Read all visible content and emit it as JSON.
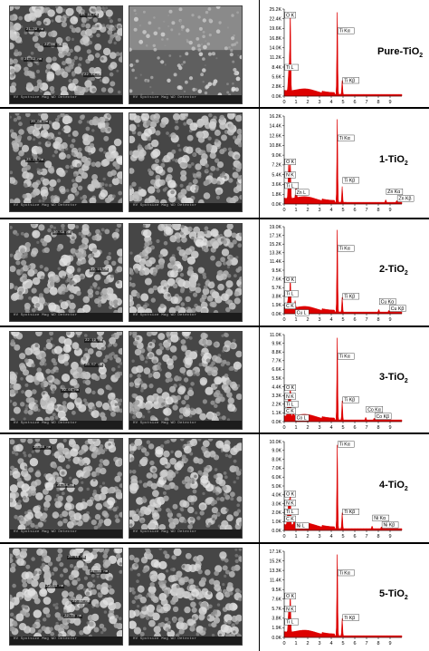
{
  "colors": {
    "spectrum": "#dd0000",
    "background": "#ffffff",
    "sem_gray": "#6d6d6d"
  },
  "panels": [
    {
      "name": "Pure-TiO",
      "subscript": "2",
      "yticks": [
        "25.2K",
        "22.4K",
        "19.6K",
        "16.8K",
        "14.0K",
        "11.2K",
        "8.4K",
        "5.6K",
        "2.8K",
        "0.0K"
      ],
      "sem_labels": [
        "23.11 nm",
        "21.39 nm",
        "22.00 nm",
        "21.62 nm",
        "22.49 nm"
      ],
      "peaks": [
        {
          "e": 0.39,
          "h": 0.22,
          "w": 0.07
        },
        {
          "e": 0.45,
          "h": 0.14,
          "w": 0.05
        },
        {
          "e": 0.52,
          "h": 0.9,
          "w": 0.05
        },
        {
          "e": 4.51,
          "h": 0.98,
          "w": 0.05
        },
        {
          "e": 4.93,
          "h": 0.16,
          "w": 0.05
        }
      ],
      "labels": [
        {
          "text": "O K",
          "e": 0.52,
          "h": 0.9
        },
        {
          "text": "Ti L",
          "e": 0.39,
          "h": 0.3
        },
        {
          "text": "Ti Kα",
          "e": 4.51,
          "h": 0.72
        },
        {
          "text": "Ti Kβ",
          "e": 4.93,
          "h": 0.15
        }
      ]
    },
    {
      "name": "1-TiO",
      "subscript": "2",
      "yticks": [
        "16.2K",
        "14.4K",
        "12.6K",
        "10.8K",
        "9.0K",
        "7.2K",
        "5.4K",
        "3.6K",
        "1.8K",
        "0.0K"
      ],
      "sem_labels": [
        "20.06 nm",
        "23.28 nm"
      ],
      "peaks": [
        {
          "e": 0.39,
          "h": 0.26,
          "w": 0.07
        },
        {
          "e": 0.39,
          "h": 0.2,
          "w": 0.06
        },
        {
          "e": 0.52,
          "h": 0.42,
          "w": 0.05
        },
        {
          "e": 1.01,
          "h": 0.16,
          "w": 0.06
        },
        {
          "e": 4.51,
          "h": 0.98,
          "w": 0.05
        },
        {
          "e": 4.93,
          "h": 0.18,
          "w": 0.05
        },
        {
          "e": 8.63,
          "h": 0.03,
          "w": 0.05
        },
        {
          "e": 9.57,
          "h": 0.02,
          "w": 0.05
        }
      ],
      "labels": [
        {
          "text": "O K",
          "e": 0.52,
          "h": 0.45
        },
        {
          "text": "N K",
          "e": 0.39,
          "h": 0.3
        },
        {
          "text": "Ti L",
          "e": 0.39,
          "h": 0.18
        },
        {
          "text": "Zn L",
          "e": 1.01,
          "h": 0.18
        },
        {
          "text": "Ti Kα",
          "e": 4.51,
          "h": 0.72
        },
        {
          "text": "Ti Kβ",
          "e": 4.93,
          "h": 0.24
        },
        {
          "text": "Zn Kα",
          "e": 8.63,
          "h": 0.04
        },
        {
          "text": "Zn Kβ",
          "e": 9.57,
          "h": 0.04
        }
      ]
    },
    {
      "name": "2-TiO",
      "subscript": "2",
      "yticks": [
        "19.0K",
        "17.1K",
        "15.2K",
        "13.3K",
        "11.4K",
        "9.5K",
        "7.6K",
        "5.7K",
        "3.8K",
        "1.9K",
        "0.0K"
      ],
      "sem_labels": [
        "20.58 nm",
        "22.15 nm"
      ],
      "peaks": [
        {
          "e": 0.27,
          "h": 0.06,
          "w": 0.05
        },
        {
          "e": 0.39,
          "h": 0.2,
          "w": 0.07
        },
        {
          "e": 0.52,
          "h": 0.36,
          "w": 0.05
        },
        {
          "e": 0.93,
          "h": 0.08,
          "w": 0.05
        },
        {
          "e": 4.51,
          "h": 0.98,
          "w": 0.05
        },
        {
          "e": 4.93,
          "h": 0.17,
          "w": 0.05
        },
        {
          "e": 8.04,
          "h": 0.03,
          "w": 0.05
        },
        {
          "e": 8.9,
          "h": 0.02,
          "w": 0.05
        }
      ],
      "labels": [
        {
          "text": "O K",
          "e": 0.52,
          "h": 0.36
        },
        {
          "text": "Ti L",
          "e": 0.39,
          "h": 0.2
        },
        {
          "text": "C K",
          "e": 0.27,
          "h": 0.06
        },
        {
          "text": "Cu L",
          "e": 0.93,
          "h": 0.06
        },
        {
          "text": "Ti Kα",
          "e": 4.51,
          "h": 0.72
        },
        {
          "text": "Ti Kβ",
          "e": 4.93,
          "h": 0.17
        },
        {
          "text": "Cu Kα",
          "e": 8.04,
          "h": 0.04
        },
        {
          "text": "Cu Kβ",
          "e": 8.9,
          "h": 0.04
        }
      ]
    },
    {
      "name": "3-TiO",
      "subscript": "2",
      "yticks": [
        "11.0K",
        "9.9K",
        "8.8K",
        "7.7K",
        "6.6K",
        "5.5K",
        "4.4K",
        "3.3K",
        "2.2K",
        "1.1K",
        "0.0K"
      ],
      "sem_labels": [
        "22.19 nm",
        "20.57 nm",
        "19.65 nm"
      ],
      "peaks": [
        {
          "e": 0.27,
          "h": 0.1,
          "w": 0.05
        },
        {
          "e": 0.39,
          "h": 0.26,
          "w": 0.07
        },
        {
          "e": 0.52,
          "h": 0.36,
          "w": 0.05
        },
        {
          "e": 0.78,
          "h": 0.08,
          "w": 0.05
        },
        {
          "e": 4.51,
          "h": 0.98,
          "w": 0.05
        },
        {
          "e": 4.93,
          "h": 0.22,
          "w": 0.05
        },
        {
          "e": 6.93,
          "h": 0.03,
          "w": 0.05
        },
        {
          "e": 7.65,
          "h": 0.02,
          "w": 0.05
        }
      ],
      "labels": [
        {
          "text": "O K",
          "e": 0.52,
          "h": 0.36
        },
        {
          "text": "N K",
          "e": 0.39,
          "h": 0.26
        },
        {
          "text": "Ti L",
          "e": 0.39,
          "h": 0.17
        },
        {
          "text": "C K",
          "e": 0.27,
          "h": 0.1
        },
        {
          "text": "Co L",
          "e": 0.78,
          "h": 0.1
        },
        {
          "text": "Ti Kα",
          "e": 4.51,
          "h": 0.72
        },
        {
          "text": "Ti Kβ",
          "e": 4.93,
          "h": 0.22
        },
        {
          "text": "Co Kα",
          "e": 6.93,
          "h": 0.04
        },
        {
          "text": "Co Kβ",
          "e": 7.65,
          "h": 0.04
        }
      ]
    },
    {
      "name": "4-TiO",
      "subscript": "2",
      "yticks": [
        "10.0K",
        "9.0K",
        "8.0K",
        "7.0K",
        "6.0K",
        "5.0K",
        "4.0K",
        "3.0K",
        "2.0K",
        "1.0K",
        "0.0K"
      ],
      "sem_labels": [
        "20.68 nm",
        "21.56 nm"
      ],
      "peaks": [
        {
          "e": 0.27,
          "h": 0.1,
          "w": 0.05
        },
        {
          "e": 0.39,
          "h": 0.3,
          "w": 0.07
        },
        {
          "e": 0.52,
          "h": 0.38,
          "w": 0.05
        },
        {
          "e": 0.85,
          "h": 0.08,
          "w": 0.05
        },
        {
          "e": 4.51,
          "h": 0.98,
          "w": 0.05
        },
        {
          "e": 4.93,
          "h": 0.18,
          "w": 0.05
        },
        {
          "e": 7.47,
          "h": 0.03,
          "w": 0.05
        },
        {
          "e": 8.26,
          "h": 0.02,
          "w": 0.05
        }
      ],
      "labels": [
        {
          "text": "O K",
          "e": 0.52,
          "h": 0.38
        },
        {
          "text": "N K",
          "e": 0.39,
          "h": 0.28
        },
        {
          "text": "Ti L",
          "e": 0.39,
          "h": 0.18
        },
        {
          "text": "C K",
          "e": 0.27,
          "h": 0.1
        },
        {
          "text": "Ni L",
          "e": 0.85,
          "h": 0.1
        },
        {
          "text": "Ti Kα",
          "e": 4.51,
          "h": 0.94
        },
        {
          "text": "Ti Kβ",
          "e": 4.93,
          "h": 0.18
        },
        {
          "text": "Ni Kα",
          "e": 7.47,
          "h": 0.04
        },
        {
          "text": "Ni Kβ",
          "e": 8.26,
          "h": 0.04
        }
      ]
    },
    {
      "name": "5-TiO",
      "subscript": "2",
      "yticks": [
        "17.1K",
        "15.2K",
        "13.3K",
        "11.4K",
        "9.5K",
        "7.6K",
        "5.7K",
        "3.8K",
        "1.9K",
        "0.0K"
      ],
      "sem_labels": [
        "20.18 nm",
        "21.31 nm",
        "22.63 nm",
        "22.47 nm",
        "22.78 nm"
      ],
      "peaks": [
        {
          "e": 0.39,
          "h": 0.28,
          "w": 0.07
        },
        {
          "e": 0.52,
          "h": 0.45,
          "w": 0.05
        },
        {
          "e": 4.51,
          "h": 0.98,
          "w": 0.05
        },
        {
          "e": 4.93,
          "h": 0.2,
          "w": 0.05
        }
      ],
      "labels": [
        {
          "text": "O K",
          "e": 0.52,
          "h": 0.45
        },
        {
          "text": "N K",
          "e": 0.39,
          "h": 0.3
        },
        {
          "text": "Ti L",
          "e": 0.39,
          "h": 0.15
        },
        {
          "text": "Ti Kα",
          "e": 4.51,
          "h": 0.72
        },
        {
          "text": "Ti Kβ",
          "e": 4.93,
          "h": 0.2
        }
      ]
    }
  ],
  "xticks": [
    "0",
    "1",
    "2",
    "3",
    "4",
    "5",
    "6",
    "7",
    "8",
    "9"
  ],
  "sem_footer": "HV  Spotsize  Mag  WD  Detector",
  "sem_footer2": "20.0 kV  3.0  100000 x  10.2  ETD"
}
